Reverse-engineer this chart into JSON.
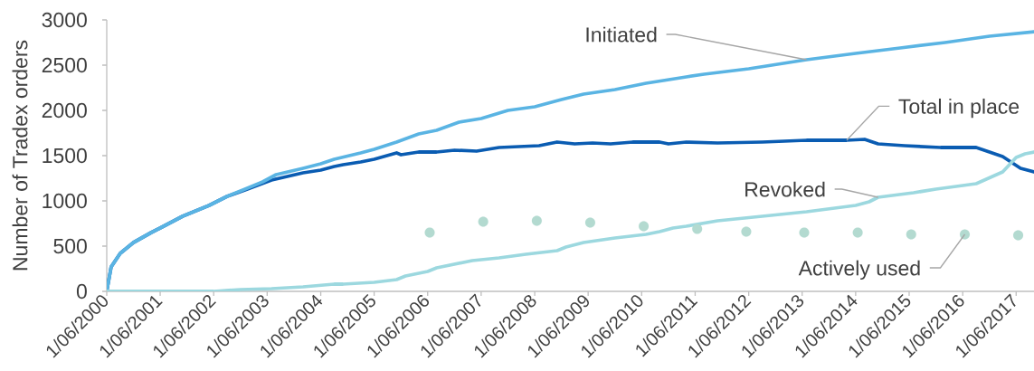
{
  "chart_data": {
    "type": "line",
    "ylabel": "Number of Tradex orders",
    "xlim": [
      "2000-06-01",
      "2017-10-01"
    ],
    "ylim": [
      0,
      3000
    ],
    "yticks": [
      0,
      500,
      1000,
      1500,
      2000,
      2500,
      3000
    ],
    "xticks": [
      {
        "value": "2000-06-01",
        "label": "1/06/2000"
      },
      {
        "value": "2001-06-01",
        "label": "1/06/2001"
      },
      {
        "value": "2002-06-01",
        "label": "1/06/2002"
      },
      {
        "value": "2003-06-01",
        "label": "1/06/2003"
      },
      {
        "value": "2004-06-01",
        "label": "1/06/2004"
      },
      {
        "value": "2005-06-01",
        "label": "1/06/2005"
      },
      {
        "value": "2006-06-01",
        "label": "1/06/2006"
      },
      {
        "value": "2007-06-01",
        "label": "1/06/2007"
      },
      {
        "value": "2008-06-01",
        "label": "1/06/2008"
      },
      {
        "value": "2009-06-01",
        "label": "1/06/2009"
      },
      {
        "value": "2010-06-01",
        "label": "1/06/2010"
      },
      {
        "value": "2011-06-01",
        "label": "1/06/2011"
      },
      {
        "value": "2012-06-01",
        "label": "1/06/2012"
      },
      {
        "value": "2013-06-01",
        "label": "1/06/2013"
      },
      {
        "value": "2014-06-01",
        "label": "1/06/2014"
      },
      {
        "value": "2015-06-01",
        "label": "1/06/2015"
      },
      {
        "value": "2016-06-01",
        "label": "1/06/2016"
      },
      {
        "value": "2017-06-01",
        "label": "1/06/2017"
      }
    ],
    "series": [
      {
        "name": "Total in place",
        "color": "#0a5cb2",
        "x": [
          "2000-06",
          "2000-07",
          "2000-09",
          "2000-12",
          "2001-04",
          "2001-06",
          "2001-11",
          "2002-05",
          "2002-09",
          "2003-01",
          "2003-07",
          "2004-02",
          "2004-06",
          "2004-09",
          "2004-11",
          "2005-03",
          "2005-06",
          "2005-11",
          "2005-12",
          "2006-04",
          "2006-08",
          "2006-12",
          "2007-05",
          "2007-10",
          "2008-07",
          "2008-11",
          "2009-03",
          "2009-07",
          "2009-11",
          "2010-04",
          "2010-10",
          "2010-12",
          "2011-04",
          "2011-11",
          "2012-09",
          "2013-07",
          "2014-04",
          "2014-08",
          "2014-11",
          "2015-05",
          "2016-01",
          "2016-09",
          "2016-12",
          "2017-03",
          "2017-07",
          "2017-10"
        ],
        "values": [
          0,
          270,
          420,
          540,
          650,
          700,
          830,
          950,
          1050,
          1120,
          1230,
          1310,
          1340,
          1380,
          1400,
          1430,
          1460,
          1530,
          1510,
          1540,
          1540,
          1560,
          1550,
          1590,
          1610,
          1650,
          1630,
          1640,
          1630,
          1650,
          1650,
          1630,
          1650,
          1640,
          1650,
          1670,
          1670,
          1680,
          1630,
          1610,
          1590,
          1590,
          1540,
          1490,
          1360,
          1320
        ]
      },
      {
        "name": "Initiated",
        "color": "#5ab4e3",
        "x": [
          "2000-06",
          "2000-07",
          "2000-09",
          "2000-12",
          "2001-04",
          "2001-06",
          "2001-11",
          "2002-05",
          "2002-09",
          "2003-01",
          "2003-05",
          "2003-08",
          "2004-02",
          "2004-06",
          "2004-09",
          "2005-03",
          "2005-06",
          "2005-11",
          "2006-04",
          "2006-08",
          "2007-01",
          "2007-06",
          "2007-12",
          "2008-06",
          "2008-12",
          "2009-05",
          "2009-12",
          "2010-07",
          "2011-04",
          "2011-08",
          "2012-06",
          "2013-07",
          "2014-06",
          "2015-04",
          "2016-02",
          "2016-12",
          "2017-10"
        ],
        "values": [
          0,
          270,
          420,
          540,
          650,
          700,
          830,
          950,
          1050,
          1130,
          1210,
          1290,
          1360,
          1410,
          1460,
          1530,
          1570,
          1650,
          1740,
          1780,
          1870,
          1910,
          2000,
          2040,
          2120,
          2180,
          2230,
          2300,
          2370,
          2400,
          2460,
          2560,
          2630,
          2690,
          2750,
          2820,
          2870
        ]
      },
      {
        "name": "Revoked",
        "color": "#9cd8df",
        "x": [
          "2000-06",
          "2001-06",
          "2002-06",
          "2002-12",
          "2003-07",
          "2004-02",
          "2004-09",
          "2004-11",
          "2005-06",
          "2005-11",
          "2006-01",
          "2006-06",
          "2006-08",
          "2007-04",
          "2007-10",
          "2008-04",
          "2008-11",
          "2009-01",
          "2009-05",
          "2009-12",
          "2010-07",
          "2010-10",
          "2011-01",
          "2011-04",
          "2011-11",
          "2012-09",
          "2013-07",
          "2014-06",
          "2014-09",
          "2014-11",
          "2015-07",
          "2015-12",
          "2016-09",
          "2017-03",
          "2017-06",
          "2017-08",
          "2017-10"
        ],
        "values": [
          0,
          0,
          0,
          20,
          30,
          50,
          80,
          80,
          100,
          130,
          170,
          220,
          260,
          340,
          370,
          410,
          450,
          490,
          540,
          590,
          630,
          660,
          700,
          720,
          780,
          830,
          880,
          950,
          990,
          1040,
          1090,
          1130,
          1190,
          1320,
          1480,
          1520,
          1540
        ]
      },
      {
        "name": "Actively used",
        "type": "scatter",
        "marker": "circle",
        "color": "#b3dad0",
        "x": [
          "2006-06-15",
          "2007-06-15",
          "2008-06-15",
          "2009-06-15",
          "2010-06-15",
          "2011-06-15",
          "2012-05-15",
          "2013-06-15",
          "2014-06-15",
          "2015-06-15",
          "2016-06-15",
          "2017-06-15"
        ],
        "values": [
          650,
          770,
          780,
          760,
          720,
          690,
          660,
          650,
          650,
          630,
          630,
          620
        ]
      }
    ]
  }
}
